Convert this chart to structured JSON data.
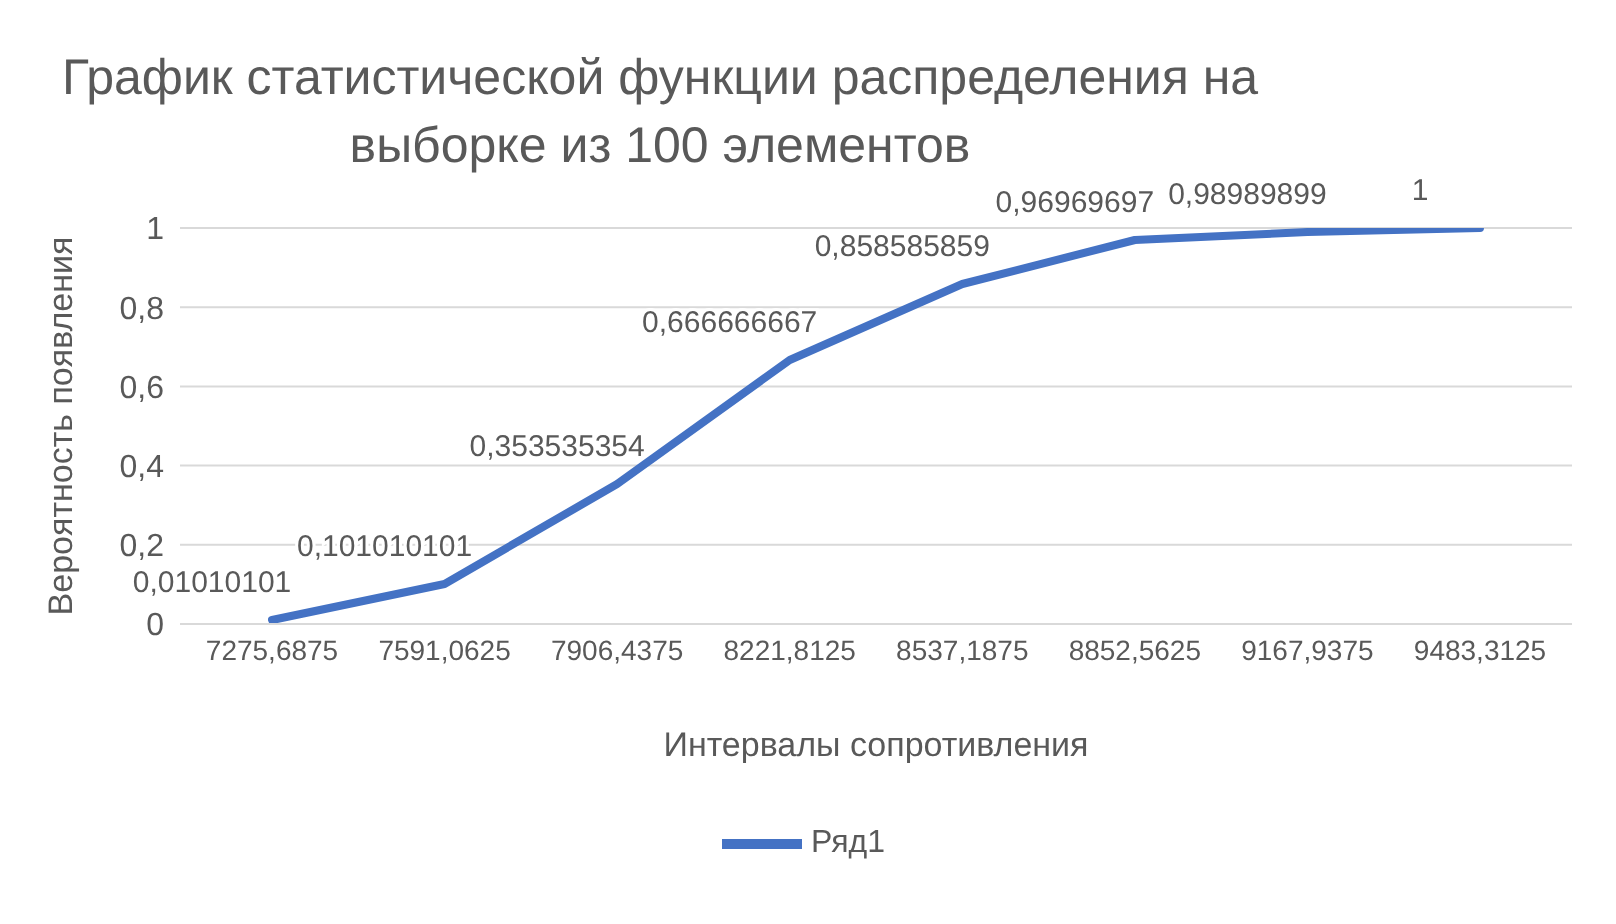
{
  "chart_data": {
    "type": "line",
    "title": "График статистической функции распределения на выборке из 100 элементов",
    "xlabel": "Интервалы сопротивления",
    "ylabel": "Вероятность появления",
    "categories": [
      "7275,6875",
      "7591,0625",
      "7906,4375",
      "8221,8125",
      "8537,1875",
      "8852,5625",
      "9167,9375",
      "9483,3125"
    ],
    "series": [
      {
        "name": "Ряд1",
        "color": "#4472c4",
        "values": [
          0.01010101,
          0.101010101,
          0.353535354,
          0.666666667,
          0.858585859,
          0.96969697,
          0.98989899,
          1
        ],
        "value_labels": [
          "0,01010101",
          "0,101010101",
          "0,353535354",
          "0,666666667",
          "0,858585859",
          "0,96969697",
          "0,98989899",
          "1"
        ]
      }
    ],
    "ylim": [
      0,
      1
    ],
    "yticks": [
      0,
      {
        "value": 0.2,
        "label": "0,2"
      },
      {
        "value": 0.4,
        "label": "0,4"
      },
      {
        "value": 0.6,
        "label": "0,6"
      },
      {
        "value": 0.8,
        "label": "0,8"
      },
      1
    ],
    "grid": "y",
    "legend": "bottom",
    "marker": "none",
    "line_style": "solid"
  }
}
